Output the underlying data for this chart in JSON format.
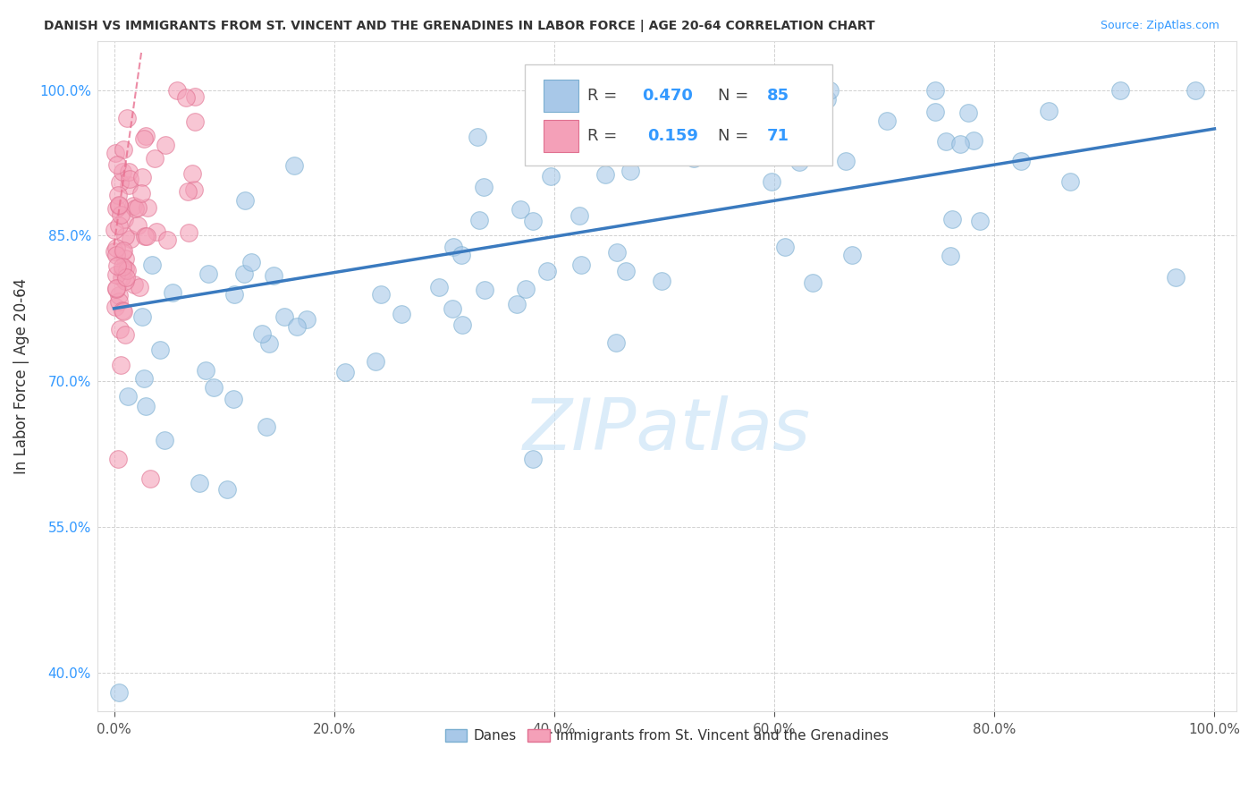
{
  "title": "DANISH VS IMMIGRANTS FROM ST. VINCENT AND THE GRENADINES IN LABOR FORCE | AGE 20-64 CORRELATION CHART",
  "source": "Source: ZipAtlas.com",
  "ylabel": "In Labor Force | Age 20-64",
  "xlim_min": -0.015,
  "xlim_max": 1.02,
  "ylim_min": 0.36,
  "ylim_max": 1.05,
  "x_ticks": [
    0.0,
    0.2,
    0.4,
    0.6,
    0.8,
    1.0
  ],
  "x_tick_labels": [
    "0.0%",
    "20.0%",
    "40.0%",
    "60.0%",
    "80.0%",
    "100.0%"
  ],
  "y_ticks": [
    0.4,
    0.55,
    0.7,
    0.85,
    1.0
  ],
  "y_tick_labels": [
    "40.0%",
    "55.0%",
    "70.0%",
    "85.0%",
    "100.0%"
  ],
  "grid_color": "#cccccc",
  "background_color": "#ffffff",
  "blue_color": "#a8c8e8",
  "blue_edge_color": "#7aaed0",
  "pink_color": "#f4a0b8",
  "pink_edge_color": "#e07090",
  "line_color": "#3a7abf",
  "pink_line_color": "#e87090",
  "legend_R1": "0.470",
  "legend_N1": "85",
  "legend_R2": "0.159",
  "legend_N2": "71",
  "legend_text_color": "#3399ff",
  "label_color": "#333333",
  "ytick_color": "#3399ff",
  "xtick_color": "#555555",
  "title_color": "#333333",
  "source_color": "#3399ff"
}
